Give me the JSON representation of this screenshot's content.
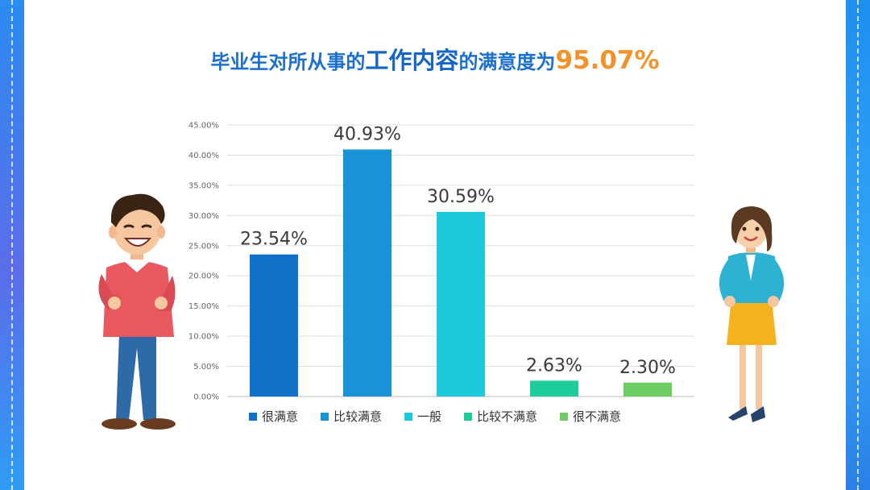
{
  "title": {
    "part1": "毕业生对所从事的",
    "part2": "工作内容",
    "part3": "的满意度为",
    "part4": "95.07%"
  },
  "colors": {
    "title_blue": "#1a6fd0",
    "title_accent": "#f2922b",
    "frame": "#1e7fe0"
  },
  "illustrations": [
    "man-character",
    "woman-character"
  ],
  "chart_data": {
    "type": "bar",
    "title": "",
    "xlabel": "",
    "ylabel": "",
    "categories": [
      "很满意",
      "比较满意",
      "一般",
      "比较不满意",
      "很不满意"
    ],
    "values": [
      23.54,
      40.93,
      30.59,
      2.63,
      2.3
    ],
    "value_labels": [
      "23.54%",
      "40.93%",
      "30.59%",
      "2.63%",
      "2.30%"
    ],
    "colors": [
      "#1170c8",
      "#1793d6",
      "#1dc7dc",
      "#1dcc9a",
      "#6ccd64"
    ],
    "ylim": [
      0,
      45
    ],
    "yticks": [
      0,
      5,
      10,
      15,
      20,
      25,
      30,
      35,
      40,
      45
    ],
    "ytick_labels": [
      "0.00%",
      "5.00%",
      "10.00%",
      "15.00%",
      "20.00%",
      "25.00%",
      "30.00%",
      "35.00%",
      "40.00%",
      "45.00%"
    ],
    "grid": true,
    "legend": "bottom"
  }
}
